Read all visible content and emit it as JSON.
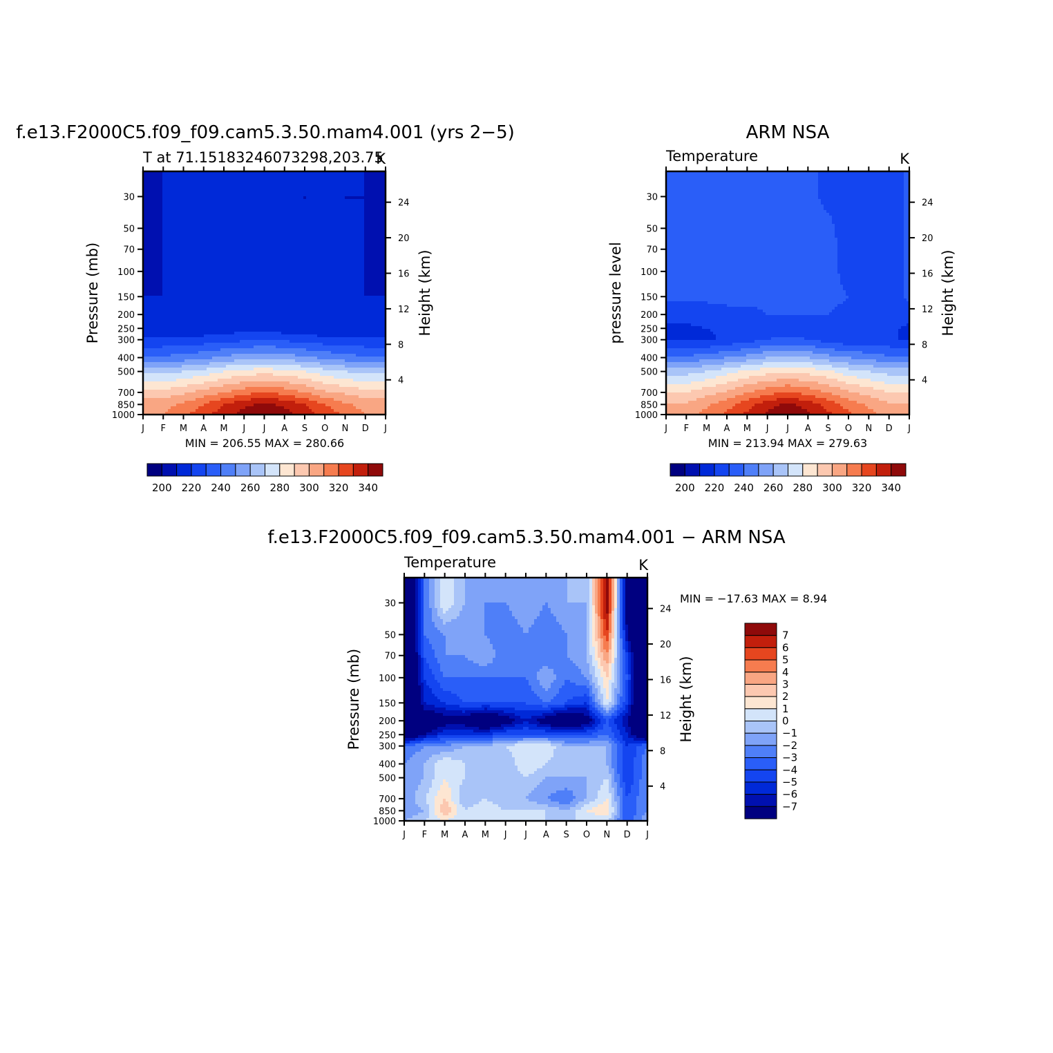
{
  "colors": {
    "temp_levels": [
      "#000080",
      "#0010b0",
      "#0029d8",
      "#1445f0",
      "#2a5ef8",
      "#4f7ff8",
      "#7fa3f8",
      "#a9c4f8",
      "#d3e4fa",
      "#fde6d2",
      "#fcc8b0",
      "#f9a683",
      "#f67c4f",
      "#e6461f",
      "#c21f0c",
      "#8f0a0a"
    ],
    "diff_levels": [
      "#000080",
      "#0010b0",
      "#0029d8",
      "#1445f0",
      "#2a5ef8",
      "#4f7ff8",
      "#7fa3f8",
      "#a9c4f8",
      "#d3e4fa",
      "#fde6d2",
      "#fcc8b0",
      "#f9a683",
      "#f67c4f",
      "#e6461f",
      "#c21f0c",
      "#8f0a0a"
    ]
  },
  "months": [
    "J",
    "F",
    "M",
    "A",
    "M",
    "J",
    "J",
    "A",
    "S",
    "O",
    "N",
    "D",
    "J"
  ],
  "pressure_ticks": [
    "30",
    "50",
    "70",
    "100",
    "150",
    "200",
    "250",
    "300",
    "400",
    "500",
    "700",
    "850",
    "1000"
  ],
  "height_ticks": [
    "24",
    "20",
    "16",
    "12",
    "8",
    "4"
  ],
  "panel1": {
    "title": "f.e13.F2000C5.f09_f09.cam5.3.50.mam4.001 (yrs 2−5)",
    "left_label": "T at 71.15183246073298,203.75",
    "unit": "K",
    "ylabel": "Pressure (mb)",
    "ylabel_right": "Height (km)",
    "stats": "MIN = 206.55 MAX = 280.66",
    "colorbar_labels": [
      "200",
      "220",
      "240",
      "260",
      "280",
      "300",
      "320",
      "340"
    ]
  },
  "panel2": {
    "title": "ARM NSA",
    "left_label": "Temperature",
    "unit": "K",
    "ylabel": "pressure level",
    "ylabel_right": "Height (km)",
    "stats": "MIN = 213.94 MAX = 279.63",
    "colorbar_labels": [
      "200",
      "220",
      "240",
      "260",
      "280",
      "300",
      "320",
      "340"
    ]
  },
  "panel3": {
    "title": "f.e13.F2000C5.f09_f09.cam5.3.50.mam4.001 − ARM NSA",
    "left_label": "Temperature",
    "unit": "K",
    "ylabel": "Pressure (mb)",
    "ylabel_right": "Height (km)",
    "stats": "MIN = −17.63 MAX =    8.94",
    "colorbar_labels": [
      "7",
      "6",
      "5",
      "4",
      "3",
      "2",
      "1",
      "0",
      "−1",
      "−2",
      "−3",
      "−4",
      "−5",
      "−6",
      "−7"
    ]
  },
  "chart_data": [
    {
      "type": "heatmap",
      "title": "f.e13.F2000C5.f09_f09.cam5.3.50.mam4.001 (yrs 2−5)",
      "subtitle": "T at 71.15183246073298,203.75",
      "units": "K",
      "xlabel": "",
      "ylabel": "Pressure (mb)",
      "ylabel_right": "Height (km)",
      "x": [
        "J",
        "F",
        "M",
        "A",
        "M",
        "J",
        "J",
        "A",
        "S",
        "O",
        "N",
        "D",
        "J"
      ],
      "y": [
        30,
        50,
        70,
        100,
        150,
        200,
        250,
        300,
        400,
        500,
        700,
        850,
        1000
      ],
      "y_scale": "log",
      "levels": [
        200,
        205,
        210,
        215,
        220,
        225,
        230,
        235,
        240,
        245,
        250,
        255,
        260,
        265,
        270,
        275,
        280
      ],
      "values": [
        [
          206,
          210,
          210,
          210,
          210,
          210,
          210,
          210,
          210,
          210,
          210,
          210,
          206
        ],
        [
          207,
          210,
          212,
          212,
          212,
          212,
          212,
          211,
          210,
          211,
          210,
          210,
          207
        ],
        [
          208,
          210,
          212,
          212,
          212,
          212,
          212,
          212,
          210,
          210,
          210,
          210,
          208
        ],
        [
          209,
          210,
          211,
          211,
          212,
          213,
          213,
          213,
          213,
          210,
          212,
          210,
          209
        ],
        [
          210,
          210,
          210,
          210,
          211,
          212,
          213,
          213,
          212,
          210,
          210,
          210,
          210
        ],
        [
          210,
          210,
          210,
          211,
          211,
          212,
          212,
          212,
          211,
          210,
          210,
          210,
          210
        ],
        [
          210,
          210,
          210,
          211,
          212,
          213,
          213,
          212,
          211,
          210,
          210,
          210,
          210
        ],
        [
          216,
          216,
          216,
          217,
          218,
          219,
          220,
          219,
          218,
          217,
          216,
          216,
          216
        ],
        [
          226,
          226,
          227,
          229,
          231,
          233,
          234,
          233,
          231,
          229,
          227,
          226,
          226
        ],
        [
          238,
          238,
          240,
          242,
          245,
          247,
          248,
          247,
          245,
          242,
          240,
          238,
          238
        ],
        [
          252,
          252,
          254,
          257,
          260,
          263,
          265,
          263,
          260,
          256,
          254,
          252,
          252
        ],
        [
          258,
          258,
          261,
          265,
          270,
          274,
          276,
          274,
          270,
          265,
          261,
          258,
          258
        ],
        [
          260,
          260,
          264,
          268,
          273,
          277,
          280,
          277,
          273,
          268,
          264,
          260,
          260
        ]
      ]
    },
    {
      "type": "heatmap",
      "title": "ARM NSA",
      "subtitle": "Temperature",
      "units": "K",
      "xlabel": "",
      "ylabel": "pressure level",
      "ylabel_right": "Height (km)",
      "x": [
        "J",
        "F",
        "M",
        "A",
        "M",
        "J",
        "J",
        "A",
        "S",
        "O",
        "N",
        "D",
        "J"
      ],
      "y": [
        30,
        50,
        70,
        100,
        150,
        200,
        250,
        300,
        400,
        500,
        700,
        850,
        1000
      ],
      "y_scale": "log",
      "levels": [
        200,
        205,
        210,
        215,
        220,
        225,
        230,
        235,
        240,
        245,
        250,
        255,
        260,
        265,
        270,
        275,
        280
      ],
      "values": [
        [
          221,
          221,
          221,
          221,
          221,
          221,
          221,
          221,
          219,
          218,
          218,
          218,
          221
        ],
        [
          221,
          221,
          221,
          221,
          221,
          221,
          221,
          221,
          221,
          218,
          218,
          218,
          221
        ],
        [
          221,
          221,
          221,
          221,
          221,
          221,
          221,
          221,
          221,
          219,
          218,
          218,
          221
        ],
        [
          221,
          221,
          221,
          221,
          221,
          221,
          221,
          221,
          221,
          219,
          218,
          218,
          221
        ],
        [
          221,
          221,
          221,
          221,
          221,
          221,
          221,
          221,
          221,
          220,
          218,
          218,
          221
        ],
        [
          217,
          217,
          218,
          219,
          219,
          220,
          220,
          220,
          220,
          219,
          218,
          218,
          217
        ],
        [
          214,
          214,
          215,
          216,
          217,
          218,
          218,
          218,
          217,
          216,
          216,
          216,
          214
        ],
        [
          214,
          214,
          214,
          216,
          218,
          220,
          221,
          220,
          218,
          216,
          216,
          216,
          214
        ],
        [
          226,
          226,
          228,
          230,
          232,
          235,
          236,
          235,
          232,
          230,
          228,
          226,
          226
        ],
        [
          238,
          238,
          240,
          243,
          246,
          248,
          249,
          248,
          246,
          242,
          240,
          238,
          238
        ],
        [
          250,
          250,
          253,
          256,
          260,
          263,
          266,
          263,
          260,
          256,
          253,
          250,
          250
        ],
        [
          256,
          256,
          259,
          263,
          268,
          273,
          276,
          273,
          268,
          263,
          259,
          256,
          256
        ],
        [
          258,
          258,
          262,
          266,
          271,
          276,
          279,
          276,
          271,
          266,
          262,
          258,
          258
        ]
      ]
    },
    {
      "type": "heatmap",
      "title": "f.e13.F2000C5.f09_f09.cam5.3.50.mam4.001 − ARM NSA",
      "subtitle": "Temperature",
      "units": "K",
      "xlabel": "",
      "ylabel": "Pressure (mb)",
      "ylabel_right": "Height (km)",
      "x": [
        "J",
        "F",
        "M",
        "A",
        "M",
        "J",
        "J",
        "A",
        "S",
        "O",
        "N",
        "D",
        "J"
      ],
      "y": [
        30,
        50,
        70,
        100,
        150,
        200,
        250,
        300,
        400,
        500,
        700,
        850,
        1000
      ],
      "y_scale": "log",
      "levels": [
        -8,
        -7,
        -6,
        -5,
        -4,
        -3,
        -2,
        -1,
        0,
        1,
        2,
        3,
        4,
        5,
        6,
        7,
        8
      ],
      "values": [
        [
          -12,
          -3,
          1,
          -1,
          -2,
          -2,
          -1,
          -2,
          -1,
          -1,
          8,
          -8,
          -12
        ],
        [
          -12,
          -3,
          -2,
          -2,
          -2,
          -3,
          -2,
          -3,
          -2,
          -1,
          6,
          -7,
          -12
        ],
        [
          -12,
          -4,
          -2,
          -2,
          -1,
          -3,
          -2,
          -3,
          -2,
          -1,
          4,
          -5,
          -12
        ],
        [
          -12,
          -5,
          -3,
          -3,
          -3,
          -3,
          -3,
          -1,
          -3,
          -2,
          2,
          -4,
          -12
        ],
        [
          -12,
          -6,
          -5,
          -4,
          -4,
          -4,
          -4,
          -3,
          -4,
          -5,
          1,
          -5,
          -12
        ],
        [
          -12,
          -9,
          -8,
          -8,
          -10,
          -8,
          -6,
          -8,
          -10,
          -8,
          -4,
          -7,
          -12
        ],
        [
          -10,
          -7,
          -5,
          -5,
          -5,
          -4,
          -4,
          -4,
          -4,
          -4,
          -3,
          -6,
          -10
        ],
        [
          -3,
          -2,
          -2,
          -1,
          -1,
          0,
          1,
          1,
          -1,
          -1,
          -1,
          -5,
          -3
        ],
        [
          -2,
          -1,
          1,
          0,
          -1,
          -1,
          1,
          0,
          -1,
          -1,
          -1,
          -5,
          -2
        ],
        [
          -2,
          -1,
          1,
          0,
          0,
          -1,
          0,
          -1,
          -1,
          -1,
          0,
          -5,
          -2
        ],
        [
          -2,
          0,
          2,
          -1,
          0,
          -1,
          -1,
          -2,
          -3,
          -1,
          1,
          -4,
          -2
        ],
        [
          -2,
          -1,
          3,
          0,
          1,
          0,
          0,
          0,
          -1,
          1,
          2,
          -4,
          -2
        ],
        [
          -1,
          0,
          1,
          0,
          0,
          0,
          0,
          0,
          0,
          0,
          0,
          -4,
          -1
        ]
      ]
    }
  ]
}
